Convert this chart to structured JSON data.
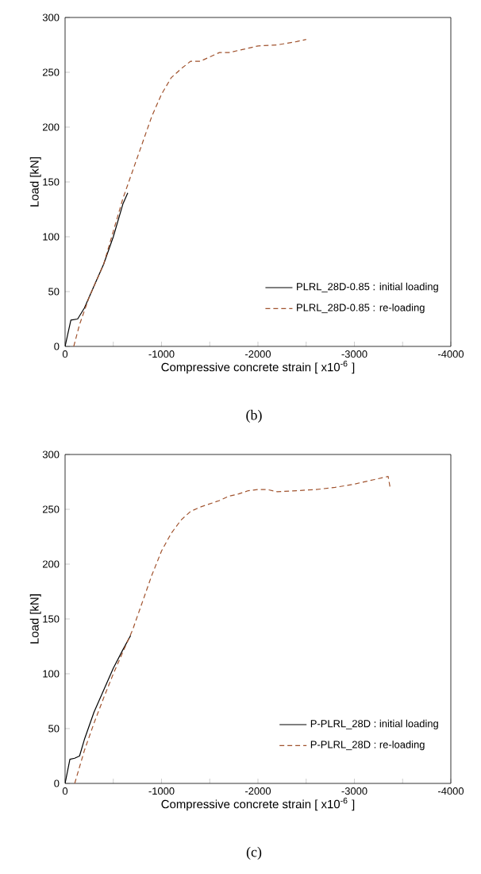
{
  "chart_data": [
    {
      "type": "line",
      "xlabel": "Compressive concrete strain [ x10$^{-6}$ ]",
      "ylabel": "Load [kN]",
      "annotations": [
        "(b)"
      ],
      "xlim": [
        0,
        -4000
      ],
      "ylim": [
        0,
        300
      ],
      "xticks": [
        0,
        {
          "value": -500,
          "label": null
        },
        -1000,
        {
          "value": -1500,
          "label": null
        },
        -2000,
        {
          "value": -2500,
          "label": null
        },
        -3000,
        {
          "value": -3500,
          "label": null
        },
        -4000
      ],
      "yticks": [
        0,
        50,
        100,
        150,
        200,
        250,
        300
      ],
      "grid": false,
      "legend": "bottom right",
      "series": [
        {
          "name": "PLRL_28D-0.85 : initial loading",
          "color": "#000000",
          "line_style": "solid",
          "x": [
            0,
            -60,
            -130,
            -200,
            -300,
            -400,
            -500,
            -600,
            -650
          ],
          "values": [
            0,
            24,
            25,
            35,
            55,
            75,
            100,
            130,
            140
          ]
        },
        {
          "name": "PLRL_28D-0.85 : re-loading",
          "color": "#a0522d",
          "line_style": "dashed",
          "x": [
            -90,
            -150,
            -250,
            -400,
            -500,
            -600,
            -700,
            -800,
            -900,
            -1000,
            -1100,
            -1200,
            -1300,
            -1400,
            -1500,
            -1600,
            -1700,
            -1800,
            -1900,
            -2000,
            -2200,
            -2400,
            -2500
          ],
          "values": [
            0,
            20,
            45,
            75,
            105,
            135,
            160,
            185,
            210,
            230,
            245,
            253,
            260,
            260,
            264,
            268,
            268,
            270,
            272,
            274,
            275,
            278,
            280
          ]
        }
      ]
    },
    {
      "type": "line",
      "xlabel": "Compressive concrete strain [ x10$^{-6}$ ]",
      "ylabel": "Load [kN]",
      "annotations": [
        "(c)"
      ],
      "xlim": [
        0,
        -4000
      ],
      "ylim": [
        0,
        300
      ],
      "xticks": [
        0,
        {
          "value": -500,
          "label": null
        },
        -1000,
        {
          "value": -1500,
          "label": null
        },
        -2000,
        {
          "value": -2500,
          "label": null
        },
        -3000,
        {
          "value": -3500,
          "label": null
        },
        -4000
      ],
      "yticks": [
        0,
        50,
        100,
        150,
        200,
        250,
        300
      ],
      "grid": false,
      "legend": "bottom right",
      "series": [
        {
          "name": "P-PLRL_28D : initial loading",
          "color": "#000000",
          "line_style": "solid",
          "x": [
            0,
            -50,
            -100,
            -150,
            -200,
            -300,
            -400,
            -500,
            -600,
            -680
          ],
          "values": [
            0,
            22,
            23,
            25,
            40,
            65,
            85,
            105,
            122,
            135
          ]
        },
        {
          "name": "P-PLRL_28D : re-loading",
          "color": "#a0522d",
          "line_style": "dashed",
          "x": [
            -100,
            -200,
            -300,
            -400,
            -500,
            -600,
            -700,
            -800,
            -900,
            -1000,
            -1100,
            -1200,
            -1300,
            -1400,
            -1500,
            -1600,
            -1700,
            -1800,
            -1900,
            -2000,
            -2100,
            -2200,
            -2400,
            -2600,
            -2800,
            -3000,
            -3200,
            -3350,
            -3370
          ],
          "values": [
            0,
            30,
            55,
            78,
            100,
            120,
            140,
            165,
            190,
            212,
            228,
            240,
            248,
            252,
            255,
            258,
            262,
            264,
            267,
            268,
            268,
            266,
            267,
            268,
            270,
            273,
            277,
            280,
            270
          ]
        }
      ]
    }
  ]
}
